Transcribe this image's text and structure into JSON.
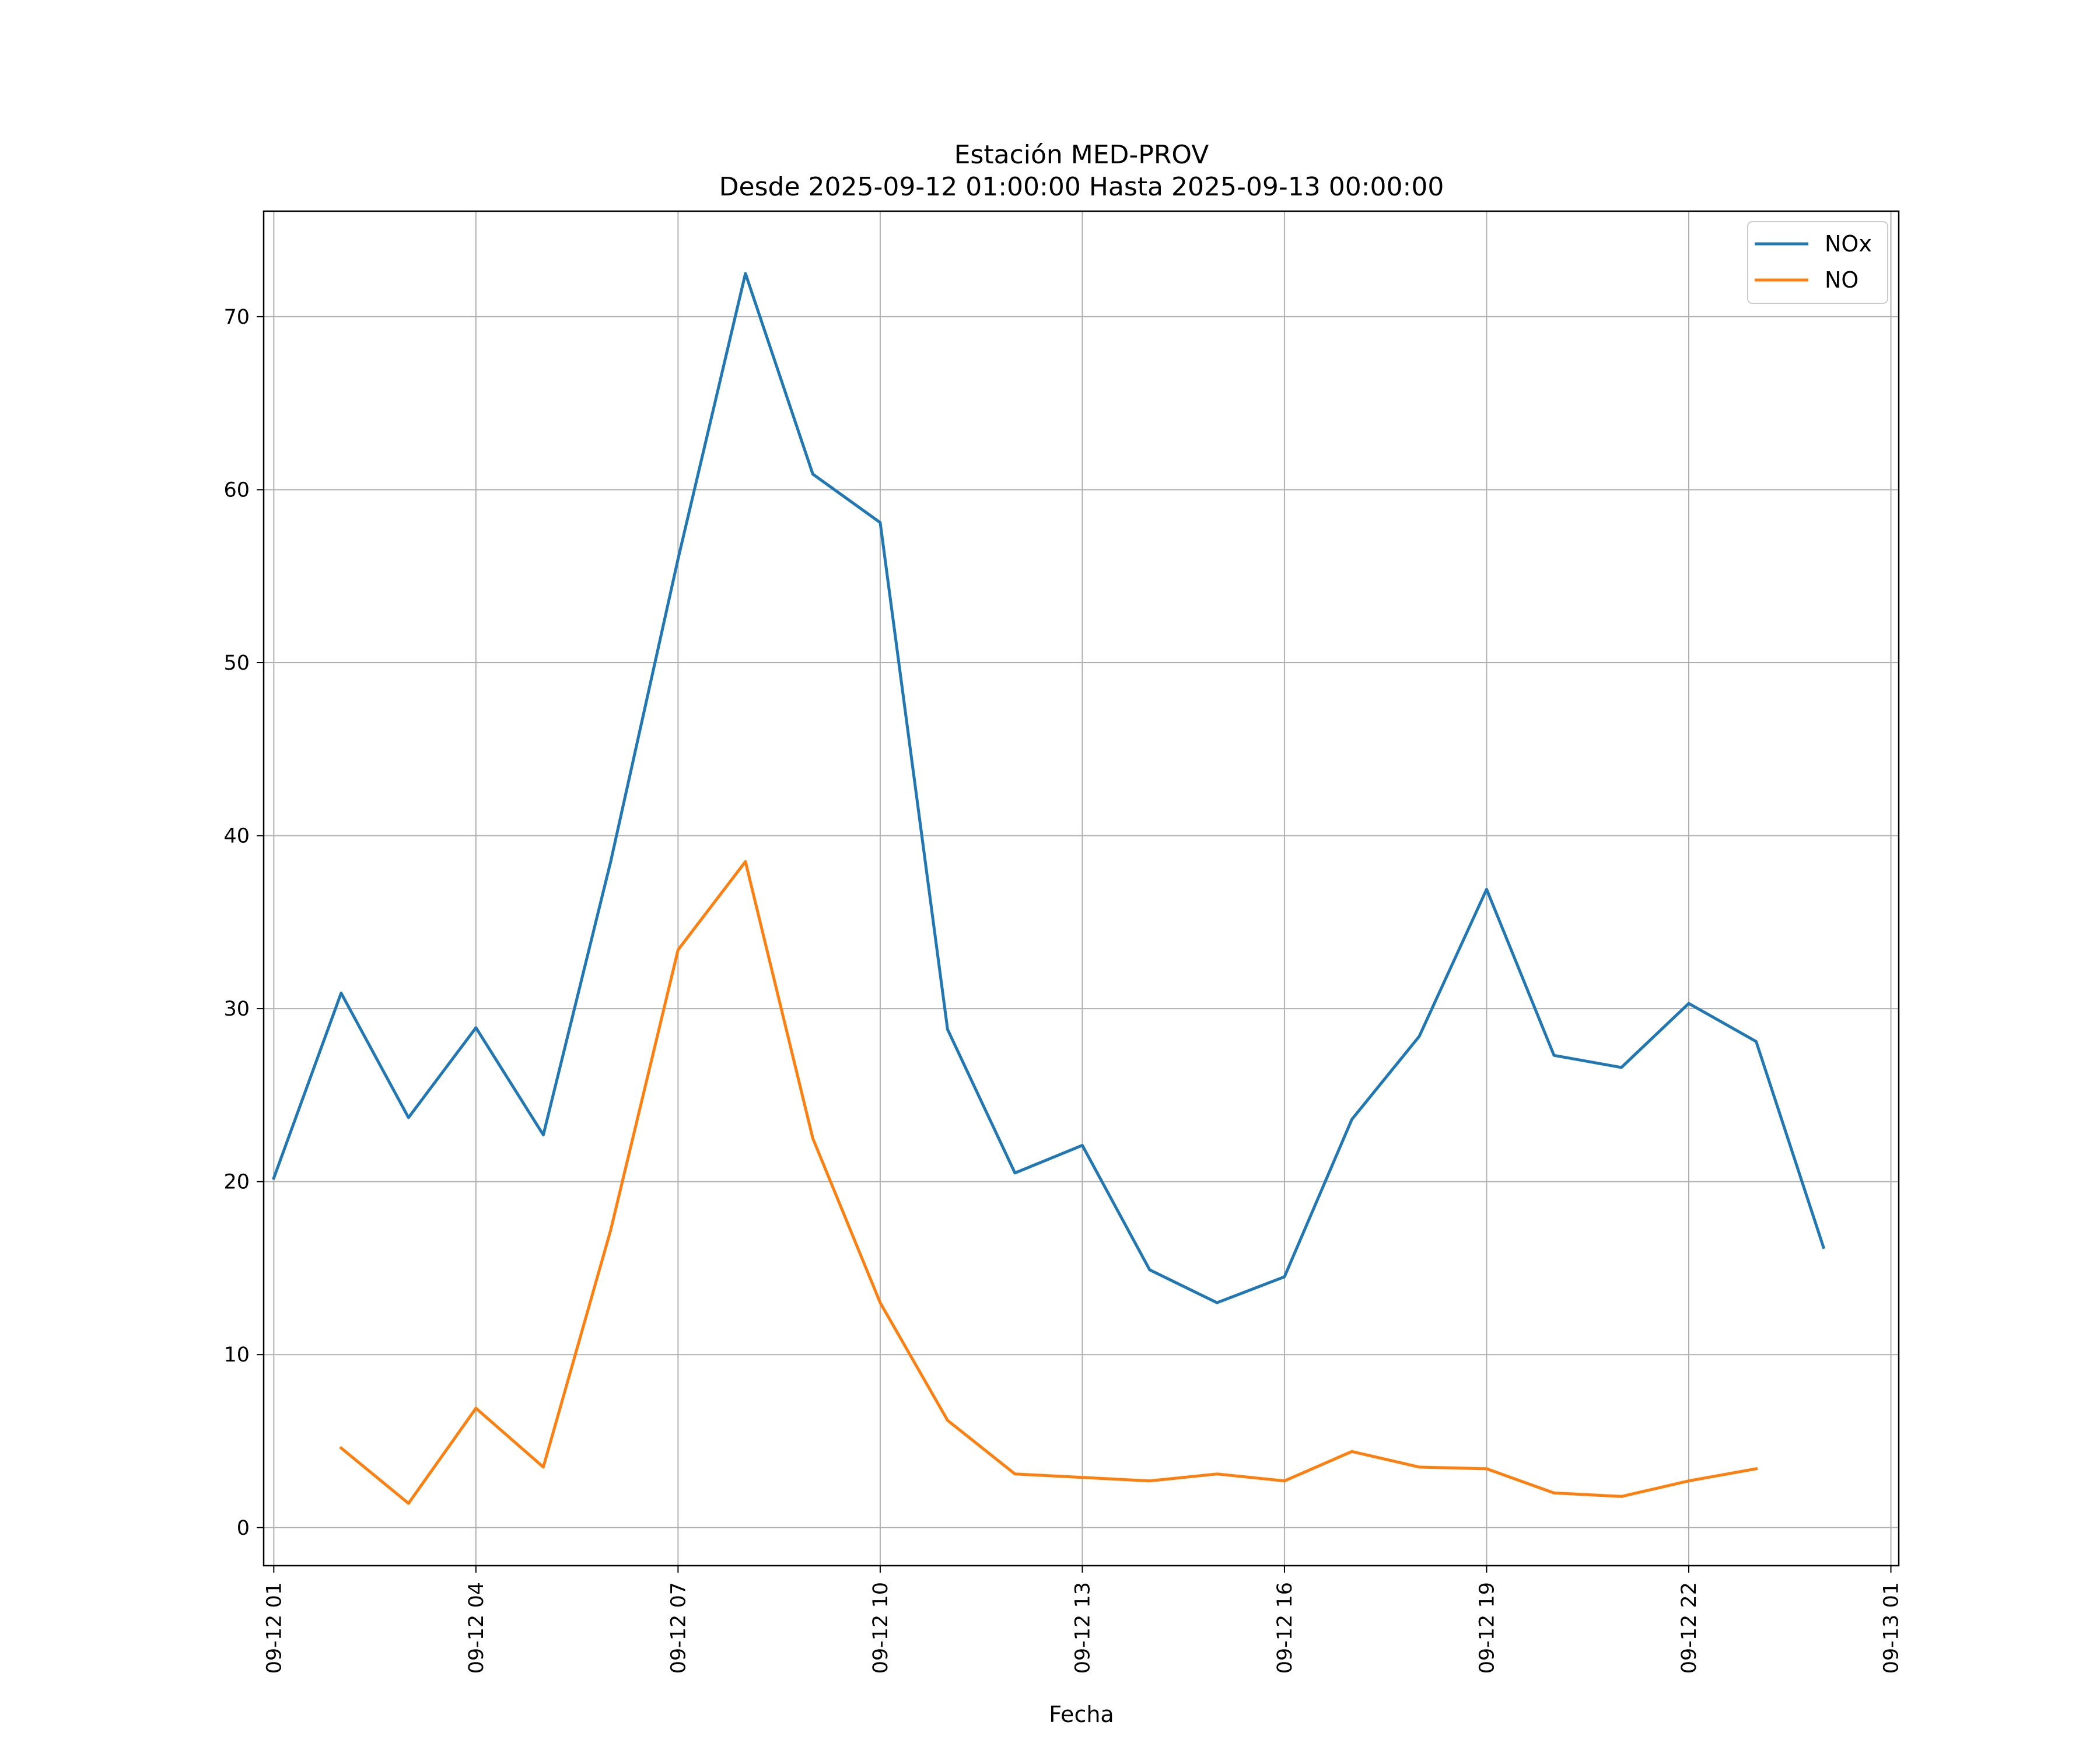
{
  "chart_data": {
    "type": "line",
    "title": "Estación MED-PROV",
    "subtitle": "Desde 2025-09-12 01:00:00 Hasta 2025-09-13 00:00:00",
    "xlabel": "Fecha",
    "ylabel": "",
    "x": [
      "2025-09-12 01:00",
      "2025-09-12 02:00",
      "2025-09-12 03:00",
      "2025-09-12 04:00",
      "2025-09-12 05:00",
      "2025-09-12 06:00",
      "2025-09-12 07:00",
      "2025-09-12 08:00",
      "2025-09-12 09:00",
      "2025-09-12 10:00",
      "2025-09-12 11:00",
      "2025-09-12 12:00",
      "2025-09-12 13:00",
      "2025-09-12 14:00",
      "2025-09-12 15:00",
      "2025-09-12 16:00",
      "2025-09-12 17:00",
      "2025-09-12 18:00",
      "2025-09-12 19:00",
      "2025-09-12 20:00",
      "2025-09-12 21:00",
      "2025-09-12 22:00",
      "2025-09-12 23:00",
      "2025-09-13 00:00"
    ],
    "series": [
      {
        "name": "NOx",
        "color": "#1f77b4",
        "values": [
          20.2,
          30.9,
          23.7,
          28.9,
          22.7,
          38.5,
          56.0,
          72.5,
          60.9,
          58.1,
          28.8,
          20.5,
          22.1,
          14.9,
          13.0,
          14.5,
          23.6,
          28.4,
          36.9,
          27.3,
          26.6,
          30.3,
          28.1,
          16.2
        ]
      },
      {
        "name": "NO",
        "color": "#ff7f0e",
        "values": [
          null,
          4.6,
          1.4,
          6.9,
          3.5,
          17.2,
          33.4,
          38.5,
          22.5,
          13.0,
          6.2,
          3.1,
          2.9,
          2.7,
          3.1,
          2.7,
          4.4,
          3.5,
          3.4,
          2.0,
          1.8,
          2.7,
          3.4,
          null
        ]
      }
    ],
    "ylim": [
      -2.2,
      76.1
    ],
    "xlim": [
      "2025-09-12 00:51",
      "2025-09-13 01:07"
    ],
    "yticks": [
      0,
      10,
      20,
      30,
      40,
      50,
      60,
      70
    ],
    "xticks": [
      "09-12 01",
      "09-12 04",
      "09-12 07",
      "09-12 10",
      "09-12 13",
      "09-12 16",
      "09-12 19",
      "09-12 22",
      "09-13 01"
    ],
    "grid": true,
    "legend_position": "top-right"
  }
}
